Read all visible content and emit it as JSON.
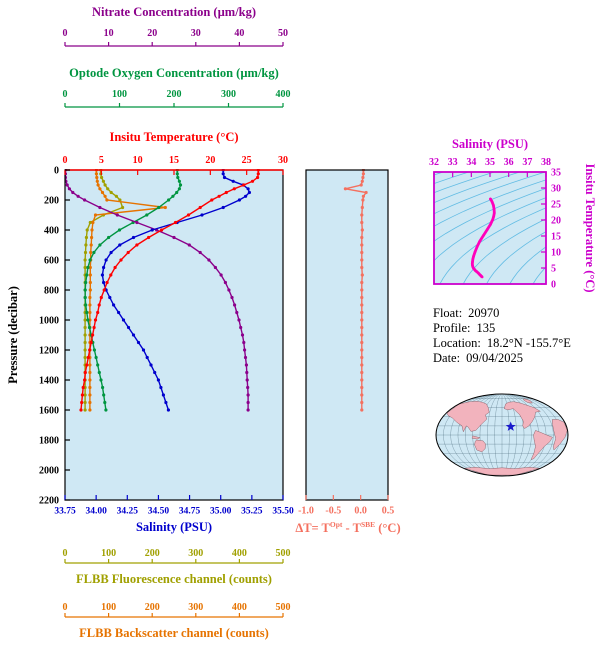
{
  "colors": {
    "background": "#ffffff",
    "panel_bg": "#cfe8f4",
    "nitrate": "#8b008b",
    "oxygen": "#009540",
    "temperature": "#ff0000",
    "salinity": "#0000cd",
    "fluorescence": "#a0a000",
    "backscatter": "#e67300",
    "delta": "#f4705f",
    "pressure": "#000000",
    "ts_frame": "#cc00cc",
    "ts_curve": "#ff00bb",
    "ts_contour": "#33aadd",
    "map_land": "#f2b3bd",
    "map_land_outline": "#7a4a52",
    "map_ocean": "#cfe8f4",
    "map_grid": "#4a6a7a",
    "map_outline": "#000000",
    "map_marker": "#1a1acc"
  },
  "info": {
    "rows": [
      {
        "label": "Float:",
        "value": "20970"
      },
      {
        "label": "Profile:",
        "value": "135"
      },
      {
        "label": "Location:",
        "value": "18.2°N -155.7°E"
      },
      {
        "label": "Date:",
        "value": "09/04/2025"
      }
    ]
  },
  "delta_panel": {
    "label_parts": {
      "p1": "ΔT= T",
      "s1": "Opt",
      "p2": " - T",
      "s2": "SBE",
      "p3": " (°C)"
    }
  },
  "map": {
    "marker_lat": 18.2,
    "marker_lon": -155.7,
    "center_lon": 180,
    "marker_shape": "star"
  },
  "chart_data": [
    {
      "type": "line",
      "description": "Float profiles versus pressure",
      "y_axis": {
        "label": "Pressure (decibar)",
        "range": [
          0,
          2200
        ],
        "inverted": true,
        "ticks": [
          "0",
          "200",
          "400",
          "600",
          "800",
          "1000",
          "1200",
          "1400",
          "1600",
          "1800",
          "2000",
          "2200"
        ]
      },
      "x_axes": [
        {
          "id": "salinity",
          "label": "Salinity (PSU)",
          "position": "bottom",
          "range": [
            33.75,
            35.5
          ],
          "ticks": [
            "33.75",
            "34.00",
            "34.25",
            "34.50",
            "34.75",
            "35.00",
            "35.25",
            "35.50"
          ]
        },
        {
          "id": "temperature",
          "label": "Insitu Temperature (°C)",
          "position": "top",
          "range": [
            0,
            30
          ],
          "ticks": [
            "0",
            "5",
            "10",
            "15",
            "20",
            "25",
            "30"
          ]
        },
        {
          "id": "oxygen",
          "label": "Optode Oxygen Concentration (µm/kg)",
          "position": "top2",
          "range": [
            0,
            400
          ],
          "ticks": [
            "0",
            "100",
            "200",
            "300",
            "400"
          ]
        },
        {
          "id": "nitrate",
          "label": "Nitrate Concentration (µm/kg)",
          "position": "top3",
          "range": [
            0,
            50
          ],
          "ticks": [
            "0",
            "10",
            "20",
            "30",
            "40",
            "50"
          ]
        },
        {
          "id": "fluorescence",
          "label": "FLBB Fluorescence channel (counts)",
          "position": "bottom2",
          "range": [
            0,
            500
          ],
          "ticks": [
            "0",
            "100",
            "200",
            "300",
            "400",
            "500"
          ]
        },
        {
          "id": "backscatter",
          "label": "FLBB Backscatter channel (counts)",
          "position": "bottom3",
          "range": [
            0,
            500
          ],
          "ticks": [
            "0",
            "100",
            "200",
            "300",
            "400",
            "500"
          ]
        }
      ],
      "pressure": [
        0,
        25,
        50,
        75,
        100,
        125,
        150,
        175,
        200,
        250,
        300,
        350,
        400,
        450,
        500,
        550,
        600,
        650,
        700,
        750,
        800,
        850,
        900,
        950,
        1000,
        1050,
        1100,
        1150,
        1200,
        1250,
        1300,
        1350,
        1400,
        1450,
        1500,
        1550,
        1600
      ],
      "series": [
        {
          "name": "FLBB Fluorescence",
          "axis": "fluorescence",
          "values": [
            82,
            82,
            84,
            88,
            92,
            98,
            106,
            118,
            126,
            132,
            88,
            58,
            51,
            49,
            48,
            47,
            46,
            46,
            46,
            46,
            46,
            46,
            46,
            46,
            46,
            46,
            46,
            46,
            46,
            46,
            46,
            46,
            46,
            46,
            46,
            46,
            46
          ]
        },
        {
          "name": "FLBB Backscatter",
          "axis": "backscatter",
          "values": [
            72,
            72,
            73,
            74,
            76,
            80,
            86,
            92,
            96,
            230,
            70,
            64,
            62,
            61,
            60,
            59,
            59,
            58,
            58,
            58,
            58,
            57,
            57,
            57,
            57,
            57,
            57,
            57,
            57,
            57,
            57,
            57,
            57,
            57,
            57,
            57,
            57
          ]
        },
        {
          "name": "Optode Oxygen",
          "axis": "oxygen",
          "values": [
            206,
            206,
            207,
            210,
            212,
            210,
            205,
            198,
            190,
            172,
            150,
            125,
            100,
            80,
            64,
            53,
            46,
            42,
            40,
            38,
            37,
            37,
            38,
            40,
            42,
            45,
            48,
            51,
            54,
            57,
            60,
            63,
            66,
            69,
            71,
            73,
            75
          ]
        },
        {
          "name": "Nitrate",
          "axis": "nitrate",
          "values": [
            0.1,
            0.1,
            0.1,
            0.2,
            0.5,
            1.0,
            1.8,
            3.0,
            4.5,
            8.0,
            12.0,
            16.5,
            21.0,
            25.0,
            28.5,
            31.0,
            33.0,
            34.5,
            35.8,
            36.8,
            37.6,
            38.3,
            38.9,
            39.4,
            39.9,
            40.3,
            40.7,
            41.0,
            41.2,
            41.4,
            41.6,
            41.7,
            41.8,
            41.9,
            42.0,
            42.0,
            42.0
          ]
        },
        {
          "name": "Salinity",
          "axis": "salinity",
          "values": [
            35.02,
            35.02,
            35.03,
            35.1,
            35.18,
            35.22,
            35.23,
            35.2,
            35.15,
            35.02,
            34.85,
            34.65,
            34.45,
            34.3,
            34.19,
            34.12,
            34.08,
            34.06,
            34.05,
            34.06,
            34.08,
            34.11,
            34.14,
            34.18,
            34.22,
            34.26,
            34.3,
            34.34,
            34.38,
            34.41,
            34.44,
            34.47,
            34.5,
            34.52,
            34.54,
            34.56,
            34.58
          ]
        },
        {
          "name": "Insitu Temperature",
          "axis": "temperature",
          "values": [
            26.6,
            26.6,
            26.5,
            25.8,
            24.6,
            23.3,
            22.2,
            21.2,
            20.2,
            18.6,
            17.0,
            15.2,
            13.3,
            11.5,
            9.9,
            8.7,
            7.7,
            6.9,
            6.3,
            5.8,
            5.4,
            5.0,
            4.7,
            4.5,
            4.2,
            4.0,
            3.8,
            3.6,
            3.4,
            3.2,
            3.0,
            2.8,
            2.7,
            2.5,
            2.4,
            2.3,
            2.2
          ]
        }
      ]
    },
    {
      "type": "line",
      "description": "Temperature difference Optode minus SBE versus pressure",
      "x_axis": {
        "label": "ΔT= TOpt - TSBE (°C)",
        "range": [
          -1.0,
          0.5
        ],
        "ticks": [
          "-1.0",
          "-0.5",
          "0.0",
          "0.5"
        ]
      },
      "y_axis": {
        "label": "Pressure (decibar)",
        "range": [
          0,
          2200
        ],
        "inverted": true,
        "shared_with": "main"
      },
      "series": [
        {
          "name": "delta-T",
          "values": [
            0.05,
            0.05,
            0.04,
            0.03,
            0.01,
            -0.28,
            0.1,
            0.05,
            0.04,
            0.03,
            0.02,
            0.02,
            0.03,
            0.02,
            0.02,
            0.02,
            0.02,
            0.02,
            0.03,
            0.02,
            0.02,
            0.02,
            0.02,
            0.02,
            0.02,
            0.02,
            0.02,
            0.02,
            0.02,
            0.02,
            0.02,
            0.02,
            0.02,
            0.02,
            0.02,
            0.02,
            0.02
          ]
        }
      ]
    },
    {
      "type": "line",
      "description": "T-S diagram with isopycnal contours",
      "x_axis": {
        "label": "Salinity (PSU)",
        "range": [
          32,
          38
        ],
        "ticks": [
          "32",
          "33",
          "34",
          "35",
          "36",
          "37",
          "38"
        ]
      },
      "y_axis": {
        "label": "Insitu Temperature (°C)",
        "range": [
          0,
          35
        ],
        "ticks": [
          "0",
          "5",
          "10",
          "15",
          "20",
          "25",
          "30",
          "35"
        ]
      },
      "isopycnal_sigma_values": [
        17,
        18,
        19,
        20,
        21,
        22,
        23,
        24,
        25,
        26,
        27,
        28,
        29,
        30,
        31
      ],
      "series": [
        {
          "name": "T-S curve",
          "derived_from": [
            "Salinity",
            "Insitu Temperature"
          ]
        }
      ]
    }
  ]
}
